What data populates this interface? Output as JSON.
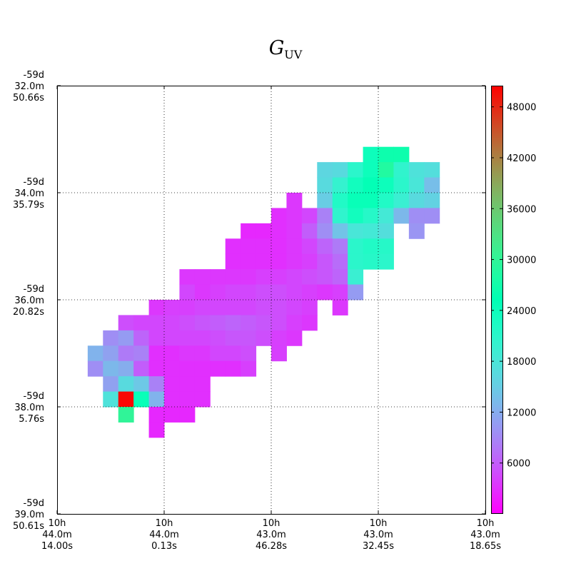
{
  "chart_data": {
    "type": "heatmap",
    "title_base": "G",
    "title_sub": "UV",
    "colorbar": {
      "colormap": "rainbow",
      "min": 0,
      "max": 50500,
      "ticks": [
        "6000",
        "12000",
        "18000",
        "24000",
        "30000",
        "36000",
        "42000",
        "48000"
      ],
      "tick_values": [
        6000,
        12000,
        18000,
        24000,
        30000,
        36000,
        42000,
        48000
      ]
    },
    "x_ticks": [
      [
        "10h",
        "44.0m",
        "14.00s"
      ],
      [
        "10h",
        "44.0m",
        "0.13s"
      ],
      [
        "10h",
        "43.0m",
        "46.28s"
      ],
      [
        "10h",
        "43.0m",
        "32.45s"
      ],
      [
        "10h",
        "43.0m",
        "18.65s"
      ]
    ],
    "y_ticks": [
      [
        "-59d",
        "32.0m",
        "50.66s"
      ],
      [
        "-59d",
        "34.0m",
        "35.79s"
      ],
      [
        "-59d",
        "36.0m",
        "20.82s"
      ],
      [
        "-59d",
        "38.0m",
        "5.76s"
      ],
      [
        "-59d",
        "39.0m",
        "50.61s"
      ]
    ],
    "grid": "dotted at inner ticks",
    "grid_size": [
      28,
      28
    ],
    "cells": [
      [
        20,
        4,
        24000
      ],
      [
        21,
        4,
        26500
      ],
      [
        22,
        4,
        26500
      ],
      [
        17,
        5,
        16000
      ],
      [
        18,
        5,
        16500
      ],
      [
        19,
        5,
        21000
      ],
      [
        20,
        5,
        24000
      ],
      [
        21,
        5,
        28500
      ],
      [
        22,
        5,
        20500
      ],
      [
        23,
        5,
        17500
      ],
      [
        24,
        5,
        17000
      ],
      [
        17,
        6,
        16500
      ],
      [
        18,
        6,
        20000
      ],
      [
        19,
        6,
        23500
      ],
      [
        20,
        6,
        25000
      ],
      [
        21,
        6,
        24000
      ],
      [
        22,
        6,
        21000
      ],
      [
        23,
        6,
        18000
      ],
      [
        24,
        6,
        13500
      ],
      [
        15,
        7,
        3500
      ],
      [
        17,
        7,
        15000
      ],
      [
        18,
        7,
        22000
      ],
      [
        19,
        7,
        24500
      ],
      [
        20,
        7,
        24500
      ],
      [
        21,
        7,
        22000
      ],
      [
        22,
        7,
        19500
      ],
      [
        23,
        7,
        16500
      ],
      [
        24,
        7,
        15500
      ],
      [
        14,
        8,
        3000
      ],
      [
        15,
        8,
        3500
      ],
      [
        16,
        8,
        4500
      ],
      [
        17,
        8,
        8500
      ],
      [
        18,
        8,
        20500
      ],
      [
        19,
        8,
        23500
      ],
      [
        20,
        8,
        21500
      ],
      [
        21,
        8,
        18500
      ],
      [
        22,
        8,
        13000
      ],
      [
        23,
        8,
        9500
      ],
      [
        24,
        8,
        9500
      ],
      [
        12,
        9,
        2500
      ],
      [
        13,
        9,
        2500
      ],
      [
        14,
        9,
        3000
      ],
      [
        15,
        9,
        3500
      ],
      [
        16,
        9,
        6000
      ],
      [
        17,
        9,
        9500
      ],
      [
        18,
        9,
        14000
      ],
      [
        19,
        9,
        18000
      ],
      [
        20,
        9,
        18500
      ],
      [
        21,
        9,
        17000
      ],
      [
        23,
        9,
        10000
      ],
      [
        11,
        10,
        3000
      ],
      [
        12,
        10,
        3000
      ],
      [
        13,
        10,
        3000
      ],
      [
        14,
        10,
        3000
      ],
      [
        15,
        10,
        3500
      ],
      [
        16,
        10,
        4500
      ],
      [
        17,
        10,
        6500
      ],
      [
        18,
        10,
        8000
      ],
      [
        19,
        10,
        21000
      ],
      [
        20,
        10,
        22000
      ],
      [
        21,
        10,
        21500
      ],
      [
        11,
        11,
        3000
      ],
      [
        12,
        11,
        3000
      ],
      [
        13,
        11,
        3000
      ],
      [
        14,
        11,
        3000
      ],
      [
        15,
        11,
        3500
      ],
      [
        16,
        11,
        4000
      ],
      [
        17,
        11,
        5500
      ],
      [
        18,
        11,
        7000
      ],
      [
        19,
        11,
        21000
      ],
      [
        20,
        11,
        21500
      ],
      [
        21,
        11,
        21000
      ],
      [
        8,
        12,
        3500
      ],
      [
        9,
        12,
        3500
      ],
      [
        10,
        12,
        3500
      ],
      [
        11,
        12,
        3500
      ],
      [
        12,
        12,
        3500
      ],
      [
        13,
        12,
        4000
      ],
      [
        14,
        12,
        4000
      ],
      [
        15,
        12,
        4500
      ],
      [
        16,
        12,
        5000
      ],
      [
        17,
        12,
        5500
      ],
      [
        18,
        12,
        6500
      ],
      [
        19,
        12,
        19500
      ],
      [
        8,
        13,
        4500
      ],
      [
        9,
        13,
        3500
      ],
      [
        10,
        13,
        4000
      ],
      [
        11,
        13,
        4500
      ],
      [
        12,
        13,
        4500
      ],
      [
        13,
        13,
        5000
      ],
      [
        14,
        13,
        5000
      ],
      [
        15,
        13,
        4500
      ],
      [
        16,
        13,
        4000
      ],
      [
        17,
        13,
        3500
      ],
      [
        18,
        13,
        4000
      ],
      [
        19,
        13,
        10500
      ],
      [
        6,
        14,
        3500
      ],
      [
        7,
        14,
        4000
      ],
      [
        8,
        14,
        4000
      ],
      [
        9,
        14,
        4500
      ],
      [
        10,
        14,
        4500
      ],
      [
        11,
        14,
        4500
      ],
      [
        12,
        14,
        4500
      ],
      [
        13,
        14,
        5000
      ],
      [
        14,
        14,
        5000
      ],
      [
        15,
        14,
        4500
      ],
      [
        16,
        14,
        4000
      ],
      [
        18,
        14,
        3500
      ],
      [
        4,
        15,
        5000
      ],
      [
        5,
        15,
        4500
      ],
      [
        6,
        15,
        4500
      ],
      [
        7,
        15,
        4500
      ],
      [
        8,
        15,
        5000
      ],
      [
        9,
        15,
        5500
      ],
      [
        10,
        15,
        6000
      ],
      [
        11,
        15,
        6500
      ],
      [
        12,
        15,
        6000
      ],
      [
        13,
        15,
        5500
      ],
      [
        14,
        15,
        5000
      ],
      [
        15,
        15,
        4000
      ],
      [
        16,
        15,
        3500
      ],
      [
        3,
        16,
        9500
      ],
      [
        4,
        16,
        10500
      ],
      [
        5,
        16,
        6500
      ],
      [
        6,
        16,
        4500
      ],
      [
        7,
        16,
        4500
      ],
      [
        8,
        16,
        4500
      ],
      [
        9,
        16,
        4500
      ],
      [
        10,
        16,
        5000
      ],
      [
        11,
        16,
        5500
      ],
      [
        12,
        16,
        5500
      ],
      [
        13,
        16,
        5000
      ],
      [
        14,
        16,
        4000
      ],
      [
        15,
        16,
        3500
      ],
      [
        2,
        17,
        12500
      ],
      [
        3,
        17,
        11000
      ],
      [
        4,
        17,
        8000
      ],
      [
        5,
        17,
        8500
      ],
      [
        6,
        17,
        3000
      ],
      [
        7,
        17,
        3000
      ],
      [
        8,
        17,
        3500
      ],
      [
        9,
        17,
        3500
      ],
      [
        10,
        17,
        4500
      ],
      [
        11,
        17,
        4500
      ],
      [
        12,
        17,
        5000
      ],
      [
        14,
        17,
        4000
      ],
      [
        2,
        18,
        9500
      ],
      [
        3,
        18,
        13000
      ],
      [
        4,
        18,
        12000
      ],
      [
        5,
        18,
        6000
      ],
      [
        6,
        18,
        3000
      ],
      [
        7,
        18,
        3000
      ],
      [
        8,
        18,
        3000
      ],
      [
        9,
        18,
        3000
      ],
      [
        10,
        18,
        3000
      ],
      [
        11,
        18,
        3000
      ],
      [
        12,
        18,
        4000
      ],
      [
        3,
        19,
        11000
      ],
      [
        4,
        19,
        16500
      ],
      [
        5,
        19,
        14500
      ],
      [
        6,
        19,
        8500
      ],
      [
        7,
        19,
        3000
      ],
      [
        8,
        19,
        3000
      ],
      [
        9,
        19,
        3000
      ],
      [
        3,
        20,
        17500
      ],
      [
        4,
        20,
        50000
      ],
      [
        5,
        20,
        24500
      ],
      [
        6,
        20,
        12500
      ],
      [
        7,
        20,
        3000
      ],
      [
        8,
        20,
        3000
      ],
      [
        9,
        20,
        3000
      ],
      [
        4,
        21,
        30000
      ],
      [
        6,
        21,
        2500
      ],
      [
        7,
        21,
        2500
      ],
      [
        8,
        21,
        2500
      ],
      [
        6,
        22,
        2500
      ]
    ]
  }
}
